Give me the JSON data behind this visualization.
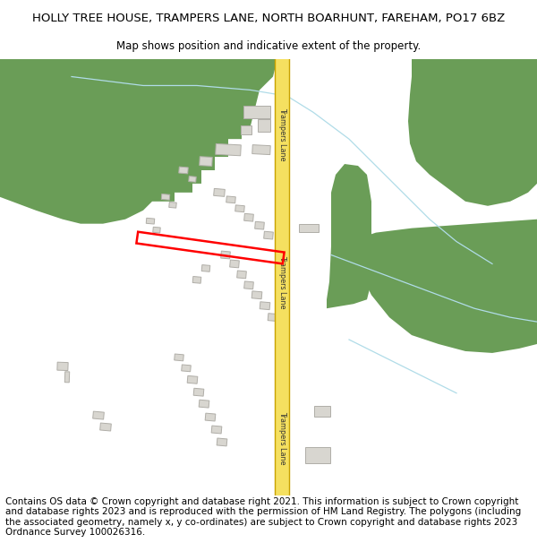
{
  "title_line1": "HOLLY TREE HOUSE, TRAMPERS LANE, NORTH BOARHUNT, FAREHAM, PO17 6BZ",
  "title_line2": "Map shows position and indicative extent of the property.",
  "footer_text": "Contains OS data © Crown copyright and database right 2021. This information is subject to Crown copyright and database rights 2023 and is reproduced with the permission of HM Land Registry. The polygons (including the associated geometry, namely x, y co-ordinates) are subject to Crown copyright and database rights 2023 Ordnance Survey 100026316.",
  "bg_color": "#ffffff",
  "map_bg": "#f8f8f5",
  "road_color": "#f5e87a",
  "road_edge_color": "#c8a800",
  "green_color": "#6a9d57",
  "building_color": "#d8d6d0",
  "building_edge_color": "#b0aea8",
  "highlight_color": "#ff0000",
  "road_label": "Trampers Lane",
  "title_fontsize": 9.5,
  "subtitle_fontsize": 8.5,
  "footer_fontsize": 7.5,
  "title_color": "#000000",
  "footer_color": "#000000",
  "stream_color": "#b0dce8",
  "white_color": "#ffffff"
}
